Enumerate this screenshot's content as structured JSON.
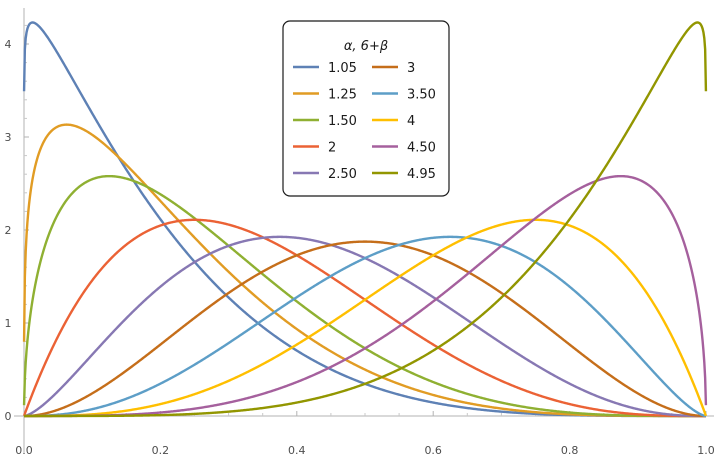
{
  "chart_data": {
    "type": "line",
    "title": "",
    "xlabel": "",
    "ylabel": "",
    "xlim": [
      0,
      1
    ],
    "ylim": [
      0,
      4.3
    ],
    "x_ticks": [
      0.0,
      0.2,
      0.4,
      0.6,
      0.8,
      1.0
    ],
    "x_tick_labels": [
      "0.0",
      "0.2",
      "0.4",
      "0.6",
      "0.8",
      "1.0"
    ],
    "y_ticks": [
      0,
      1,
      2,
      3,
      4
    ],
    "y_tick_labels": [
      "0",
      "1",
      "2",
      "3",
      "4"
    ],
    "grid": false,
    "legend": {
      "title": "α, 6+β",
      "placement": "top-center",
      "columns": 2
    },
    "series": [
      {
        "name": "1.05",
        "alpha": 1.05,
        "beta": 4.95,
        "color": "#5e81b5"
      },
      {
        "name": "1.25",
        "alpha": 1.25,
        "beta": 4.75,
        "color": "#e19c24"
      },
      {
        "name": "1.50",
        "alpha": 1.5,
        "beta": 4.5,
        "color": "#8fb032"
      },
      {
        "name": "2",
        "alpha": 2.0,
        "beta": 4.0,
        "color": "#eb6235"
      },
      {
        "name": "2.50",
        "alpha": 2.5,
        "beta": 3.5,
        "color": "#8778b3"
      },
      {
        "name": "3",
        "alpha": 3.0,
        "beta": 3.0,
        "color": "#c56e1a"
      },
      {
        "name": "3.50",
        "alpha": 3.5,
        "beta": 2.5,
        "color": "#5d9ec7"
      },
      {
        "name": "4",
        "alpha": 4.0,
        "beta": 2.0,
        "color": "#ffbf00"
      },
      {
        "name": "4.50",
        "alpha": 4.5,
        "beta": 1.5,
        "color": "#a5609d"
      },
      {
        "name": "4.95",
        "alpha": 4.95,
        "beta": 1.05,
        "color": "#929600"
      }
    ]
  }
}
